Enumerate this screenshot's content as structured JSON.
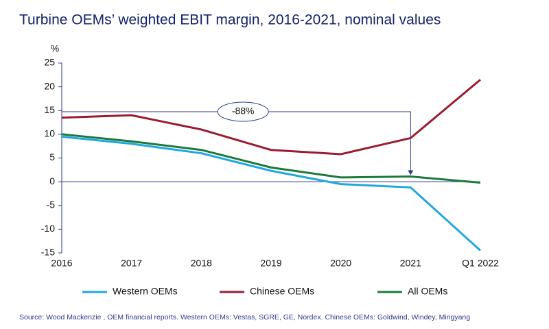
{
  "chart_data": {
    "type": "line",
    "title": "Turbine OEMs’ weighted EBIT margin, 2016-2021, nominal values",
    "y_label": "%",
    "categories": [
      "2016",
      "2017",
      "2018",
      "2019",
      "2020",
      "2021",
      "Q1 2022"
    ],
    "series": [
      {
        "name": "Western OEMs",
        "color": "#1fa7e0",
        "values": [
          9.5,
          8,
          6,
          2.3,
          -0.5,
          -1.2,
          -14.5
        ]
      },
      {
        "name": "Chinese OEMs",
        "color": "#9b1b30",
        "values": [
          13.5,
          14,
          11,
          6.7,
          5.8,
          9.2,
          21.5
        ]
      },
      {
        "name": "All OEMs",
        "color": "#1b7a3a",
        "values": [
          10,
          8.5,
          6.7,
          3,
          0.9,
          1.1,
          -0.2
        ]
      }
    ],
    "ylim": [
      -15,
      25
    ],
    "yticks": [
      -15,
      -10,
      -5,
      0,
      5,
      10,
      15,
      20,
      25
    ],
    "annotation": "-88%",
    "legend": "bottom",
    "source": "Source: Wood Mackenzie , OEM financial reports. Western OEMs: Vestas, SGRE, GE, Nordex. Chinese OEMs: Goldwind, Windey, Mingyang"
  }
}
